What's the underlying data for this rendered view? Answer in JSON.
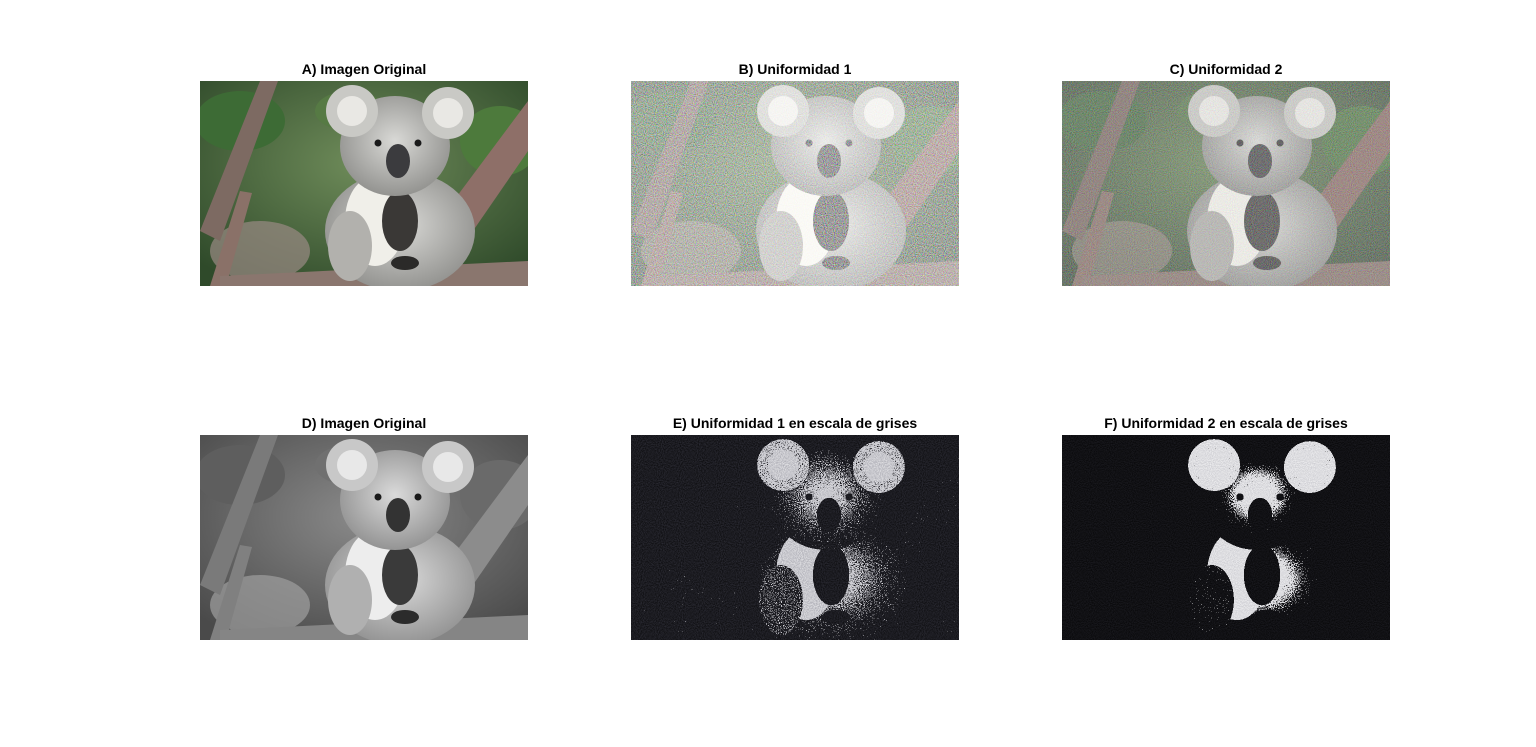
{
  "figure": {
    "panels": [
      {
        "title": "A) Imagen Original",
        "mode": "color",
        "noise": "none"
      },
      {
        "title": "B) Uniformidad 1",
        "mode": "color",
        "noise": "heavy"
      },
      {
        "title": "C) Uniformidad 2",
        "mode": "color",
        "noise": "light"
      },
      {
        "title": "D) Imagen Original",
        "mode": "gray",
        "noise": "none"
      },
      {
        "title": "E) Uniformidad 1 en escala de grises",
        "mode": "gray",
        "noise": "binary-heavy"
      },
      {
        "title": "F) Uniformidad 2 en escala de grises",
        "mode": "gray",
        "noise": "binary-light"
      }
    ],
    "subject": "koala on a tree branch"
  }
}
